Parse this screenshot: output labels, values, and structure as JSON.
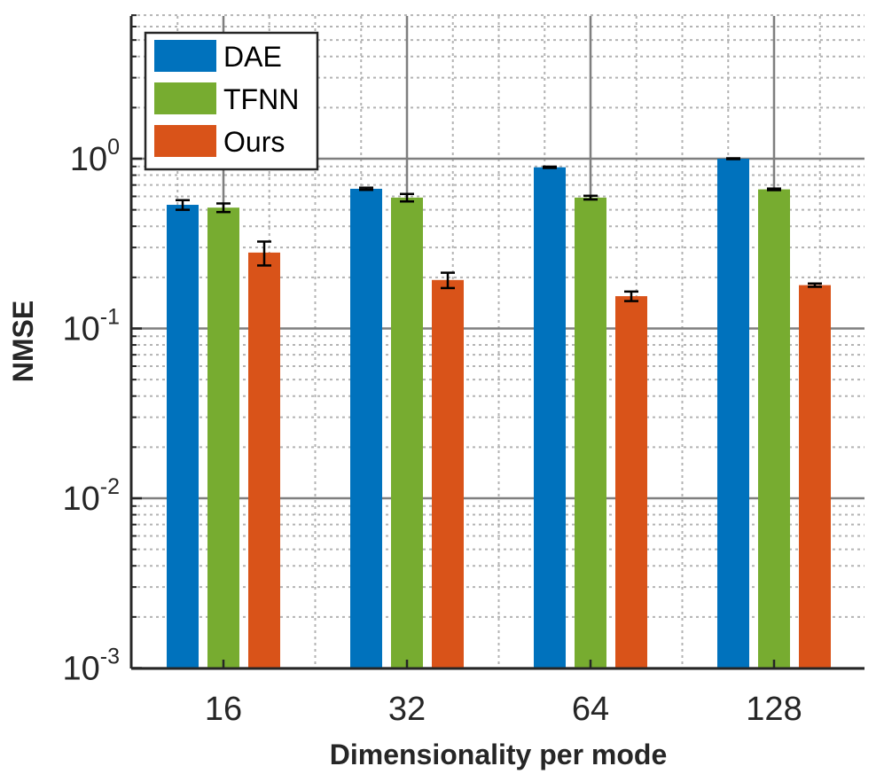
{
  "chart_data": {
    "type": "bar",
    "categories": [
      "16",
      "32",
      "64",
      "128"
    ],
    "series": [
      {
        "name": "DAE",
        "color": "#0072BD",
        "values": [
          0.535,
          0.665,
          0.89,
          1.0
        ],
        "err": [
          0.035,
          0.01,
          0.008,
          0.006
        ]
      },
      {
        "name": "TFNN",
        "color": "#77AC30",
        "values": [
          0.515,
          0.59,
          0.59,
          0.66
        ],
        "err": [
          0.03,
          0.03,
          0.015,
          0.007
        ]
      },
      {
        "name": "Ours",
        "color": "#D95319",
        "values": [
          0.28,
          0.193,
          0.155,
          0.18
        ],
        "err": [
          0.045,
          0.02,
          0.01,
          0.004
        ]
      }
    ],
    "xlabel": "Dimensionality per mode",
    "ylabel": "NMSE",
    "yscale": "log",
    "ylim": [
      0.001,
      7
    ],
    "yticks": [
      {
        "base": "10",
        "exp": "-3"
      },
      {
        "base": "10",
        "exp": "-2"
      },
      {
        "base": "10",
        "exp": "-1"
      },
      {
        "base": "10",
        "exp": "0"
      }
    ],
    "grid": true,
    "legend_position": "top-left"
  }
}
